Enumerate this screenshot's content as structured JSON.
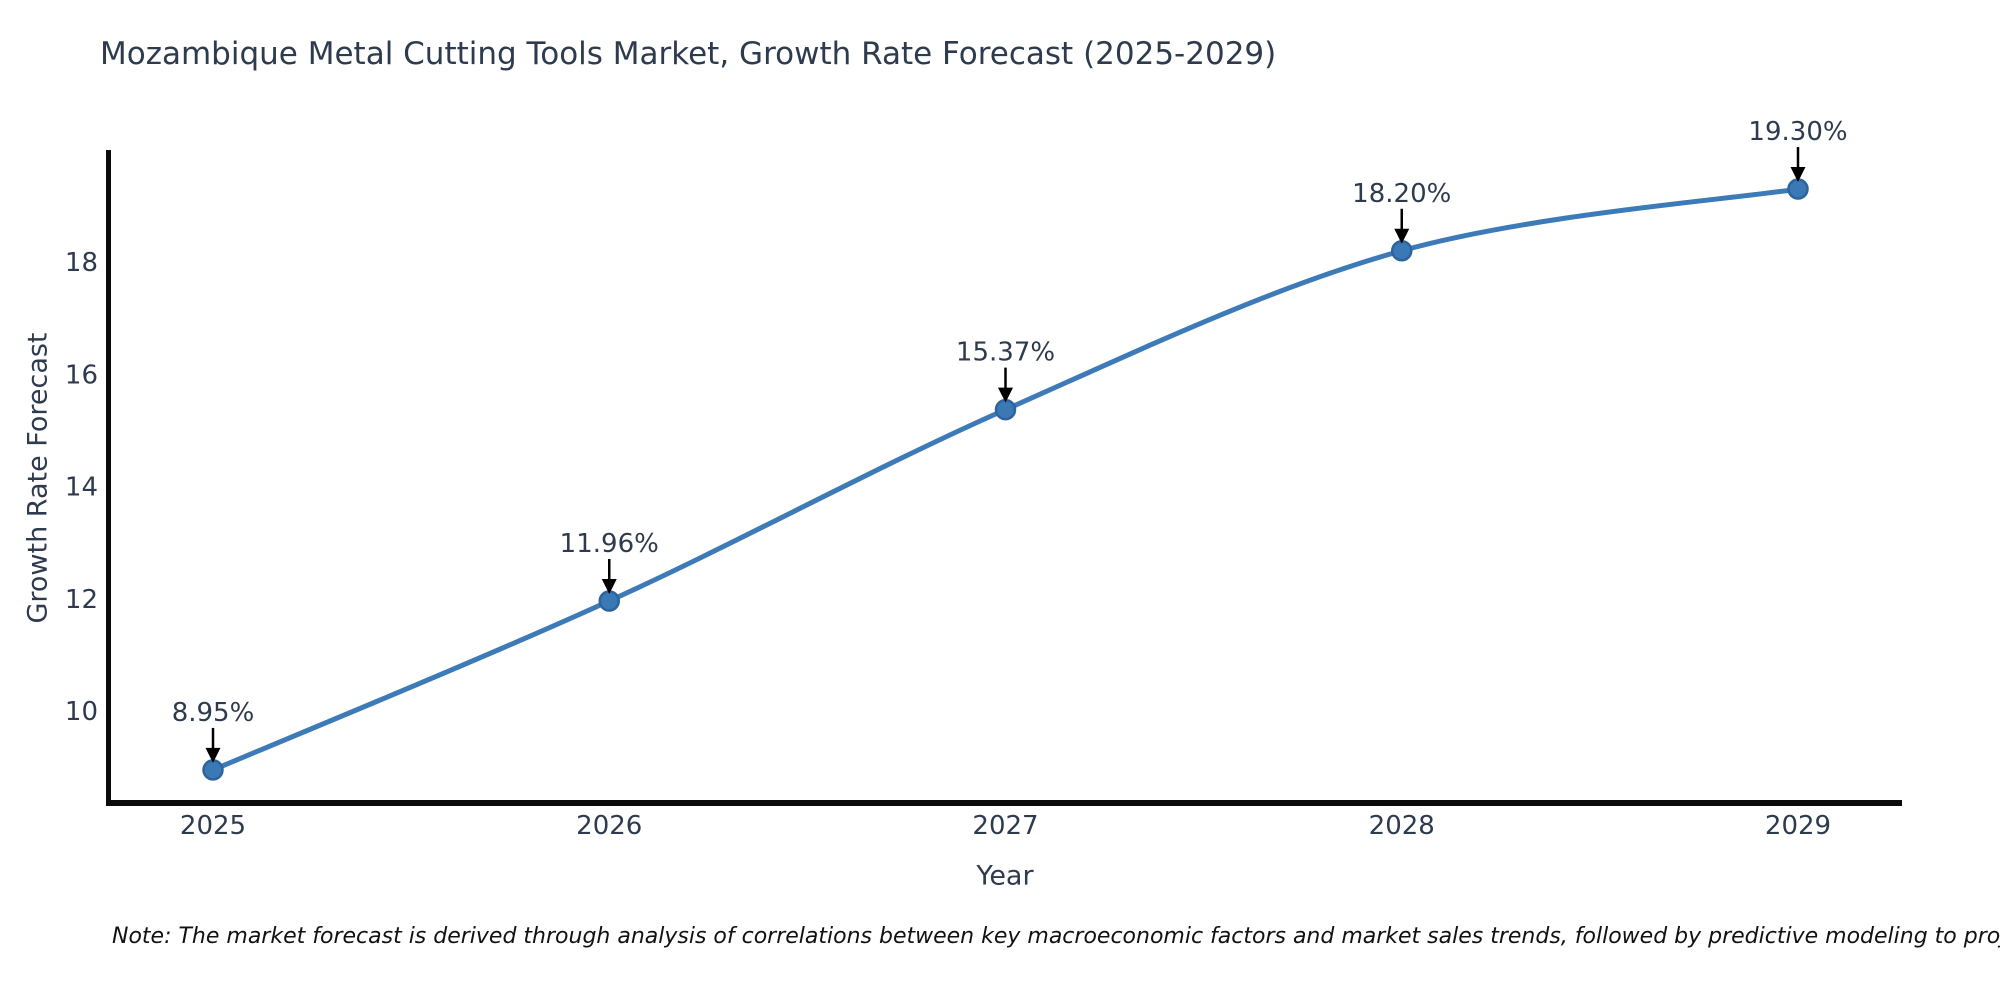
{
  "title": "Mozambique Metal Cutting Tools Market, Growth Rate Forecast (2025-2029)",
  "note": "Note: The market forecast is derived through analysis of correlations between key macroeconomic factors and market sales trends, followed by predictive modeling to project future sales",
  "chart_data": {
    "type": "line",
    "title": "Mozambique Metal Cutting Tools Market, Growth Rate Forecast (2025-2029)",
    "xlabel": "Year",
    "ylabel": "Growth Rate Forecast",
    "x": [
      2025,
      2026,
      2027,
      2028,
      2029
    ],
    "values": [
      8.95,
      11.96,
      15.37,
      18.2,
      19.3
    ],
    "point_labels": [
      "8.95%",
      "11.96%",
      "15.37%",
      "18.20%",
      "19.30%"
    ],
    "xticks": [
      "2025",
      "2026",
      "2027",
      "2028",
      "2029"
    ],
    "yticks": [
      10,
      12,
      14,
      16,
      18
    ],
    "xlim": [
      2024.74,
      2029.26
    ],
    "ylim": [
      8.4,
      20.0
    ],
    "grid": false,
    "legend": null,
    "line_color": "#3d7ab8",
    "marker_fill": "#3b78b6",
    "marker_edge_color": "#2d649c",
    "spine_color": "#0b0b0b",
    "text_color": "#2e3b4e",
    "annotation_color": "#2e3b4e",
    "arrow_color": "#000000"
  }
}
